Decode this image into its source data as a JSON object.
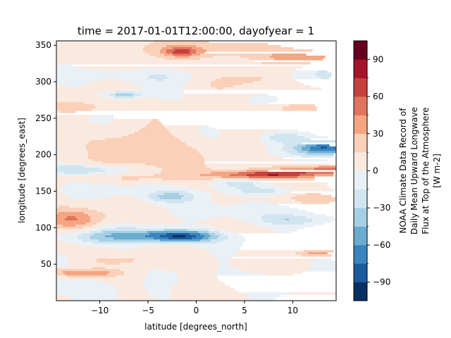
{
  "chart_data": {
    "type": "heatmap",
    "subtype": "filled-contour",
    "title": "time = 2017-01-01T12:00:00, dayofyear = 1",
    "xlabel": "latitude [degrees_north]",
    "ylabel": "longitude [degrees_east]",
    "xlim": [
      -14.5,
      14.5
    ],
    "ylim": [
      0,
      356
    ],
    "xticks": [
      -10,
      -5,
      0,
      5,
      10
    ],
    "xtick_labels": [
      "−10",
      "−5",
      "0",
      "5",
      "10"
    ],
    "yticks": [
      50,
      100,
      150,
      200,
      250,
      300,
      350
    ],
    "ytick_labels": [
      "50",
      "100",
      "150",
      "200",
      "250",
      "300",
      "350"
    ],
    "grid": false,
    "colorbar": {
      "label_lines": [
        "NOAA Climate Data Record of",
        "Daily Mean Upward Longwave",
        "Flux at Top of the Atmosphere",
        "[W m-2]"
      ],
      "levels": [
        -105,
        -90,
        -75,
        -60,
        -45,
        -30,
        -15,
        0,
        15,
        30,
        45,
        60,
        75,
        90,
        105
      ],
      "ticks": [
        -90,
        -60,
        -30,
        0,
        30,
        60,
        90
      ],
      "tick_labels": [
        "−90",
        "−60",
        "−30",
        "0",
        "30",
        "60",
        "90"
      ],
      "colors": [
        "#053061",
        "#1b5a9b",
        "#3984bf",
        "#6aacd0",
        "#a7cfe4",
        "#d1e5f0",
        "#e9f1f6",
        "#fae9df",
        "#fbd0b9",
        "#f4a582",
        "#e0745f",
        "#c6403d",
        "#a51429",
        "#67001f"
      ]
    },
    "features": [
      {
        "lat": -1.5,
        "lon": 88,
        "sx": 2.6,
        "sy": 6,
        "amp": -85
      },
      {
        "lat": -7.5,
        "lon": 90,
        "sx": 4.0,
        "sy": 7,
        "amp": -38
      },
      {
        "lat": -10.5,
        "lon": 84,
        "sx": 2.2,
        "sy": 6,
        "amp": -18
      },
      {
        "lat": 6.5,
        "lon": 172,
        "sx": 3.5,
        "sy": 4,
        "amp": 55
      },
      {
        "lat": 10.5,
        "lon": 176,
        "sx": 4.5,
        "sy": 5,
        "amp": 35
      },
      {
        "lat": 13.5,
        "lon": 180,
        "sx": 1.5,
        "sy": 4,
        "amp": 30
      },
      {
        "lat": 13.5,
        "lon": 209,
        "sx": 1.8,
        "sy": 6,
        "amp": -62
      },
      {
        "lat": 11.5,
        "lon": 207,
        "sx": 3.5,
        "sy": 8,
        "amp": -18
      },
      {
        "lat": 9.0,
        "lon": 224,
        "sx": 1.6,
        "sy": 5,
        "amp": -30
      },
      {
        "lat": -12.5,
        "lon": 180,
        "sx": 2.5,
        "sy": 5,
        "amp": -36
      },
      {
        "lat": -8.0,
        "lon": 178,
        "sx": 2.5,
        "sy": 4,
        "amp": -20
      },
      {
        "lat": -3.0,
        "lon": 143,
        "sx": 2.0,
        "sy": 6,
        "amp": -42
      },
      {
        "lat": -5.5,
        "lon": 152,
        "sx": 3.5,
        "sy": 7,
        "amp": -26
      },
      {
        "lat": -7.5,
        "lon": 282,
        "sx": 1.2,
        "sy": 3,
        "amp": -48
      },
      {
        "lat": -3.5,
        "lon": 306,
        "sx": 3.5,
        "sy": 7,
        "amp": -18
      },
      {
        "lat": -10.0,
        "lon": 310,
        "sx": 3.0,
        "sy": 5,
        "amp": -14
      },
      {
        "lat": -5.0,
        "lon": 195,
        "sx": 4.0,
        "sy": 30,
        "amp": 22
      },
      {
        "lat": -4.5,
        "lon": 148,
        "sx": 2.0,
        "sy": 5,
        "amp": 18
      },
      {
        "lat": -13.0,
        "lon": 112,
        "sx": 2.2,
        "sy": 10,
        "amp": 40
      },
      {
        "lat": -12.0,
        "lon": 38,
        "sx": 2.5,
        "sy": 4,
        "amp": 45
      },
      {
        "lat": 1.0,
        "lon": 343,
        "sx": 7.0,
        "sy": 10,
        "amp": 22
      },
      {
        "lat": -1.5,
        "lon": 341,
        "sx": 1.2,
        "sy": 4,
        "amp": 42
      },
      {
        "lat": 12.0,
        "lon": 332,
        "sx": 3.0,
        "sy": 6,
        "amp": 30
      },
      {
        "lat": 12.5,
        "lon": 65,
        "sx": 1.5,
        "sy": 3,
        "amp": 36
      },
      {
        "lat": 4.0,
        "lon": 160,
        "sx": 2.0,
        "sy": 4,
        "amp": -22
      },
      {
        "lat": 7.0,
        "lon": 150,
        "sx": 2.5,
        "sy": 4,
        "amp": -26
      },
      {
        "lat": 13.0,
        "lon": 140,
        "sx": 2.0,
        "sy": 6,
        "amp": 20
      },
      {
        "lat": 10.0,
        "lon": 110,
        "sx": 2.5,
        "sy": 5,
        "amp": -24
      },
      {
        "lat": 5.0,
        "lon": 305,
        "sx": 4.0,
        "sy": 10,
        "amp": 15
      },
      {
        "lat": 12.0,
        "lon": 310,
        "sx": 3.0,
        "sy": 12,
        "amp": -15
      },
      {
        "lat": 9.5,
        "lon": 264,
        "sx": 2.0,
        "sy": 5,
        "amp": 18
      },
      {
        "lat": 5.0,
        "lon": 120,
        "sx": 3.5,
        "sy": 10,
        "amp": -14
      },
      {
        "lat": -11.0,
        "lon": 20,
        "sx": 3.0,
        "sy": 10,
        "amp": -15
      },
      {
        "lat": 8.0,
        "lon": 25,
        "sx": 4.0,
        "sy": 10,
        "amp": -14
      },
      {
        "lat": -8.0,
        "lon": 55,
        "sx": 3.0,
        "sy": 5,
        "amp": 15
      },
      {
        "lat": -12.0,
        "lon": 265,
        "sx": 2.0,
        "sy": 5,
        "amp": 20
      }
    ]
  }
}
